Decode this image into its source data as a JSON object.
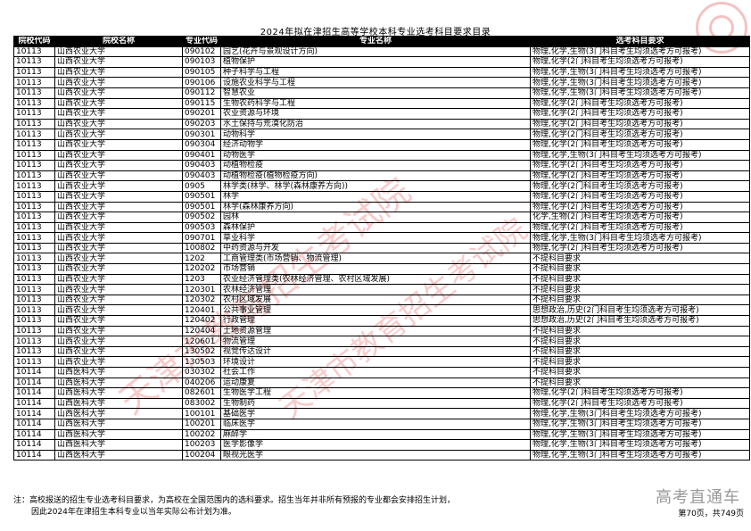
{
  "title": "2024年拟在津招生高等学校本科专业选考科目要求目录",
  "headers": [
    "院校代码",
    "院校名称",
    "专业代码",
    "专业名称",
    "选考科目要求"
  ],
  "rows": [
    [
      "10113",
      "山西农业大学",
      "090102",
      "园艺(花卉与景观设计方向)",
      "物理,化学,生物(3门科目考生均须选考方可报考)"
    ],
    [
      "10113",
      "山西农业大学",
      "090103",
      "植物保护",
      "物理,化学(2门科目考生均须选考方可报考)"
    ],
    [
      "10113",
      "山西农业大学",
      "090105",
      "种子科学与工程",
      "物理,化学,生物(3门科目考生均须选考方可报考)"
    ],
    [
      "10113",
      "山西农业大学",
      "090106",
      "设施农业科学与工程",
      "物理,化学,生物(3门科目考生均须选考方可报考)"
    ],
    [
      "10113",
      "山西农业大学",
      "090112",
      "智慧农业",
      "物理,化学,生物(3门科目考生均须选考方可报考)"
    ],
    [
      "10113",
      "山西农业大学",
      "090115",
      "生物农药科学与工程",
      "物理,化学(2门科目考生均须选考方可报考)"
    ],
    [
      "10113",
      "山西农业大学",
      "090201",
      "农业资源与环境",
      "物理,化学(2门科目考生均须选考方可报考)"
    ],
    [
      "10113",
      "山西农业大学",
      "090203",
      "水土保持与荒漠化防治",
      "物理,化学(2门科目考生均须选考方可报考)"
    ],
    [
      "10113",
      "山西农业大学",
      "090301",
      "动物科学",
      "物理,化学(2门科目考生均须选考方可报考)"
    ],
    [
      "10113",
      "山西农业大学",
      "090304",
      "经济动物学",
      "物理,化学(2门科目考生均须选考方可报考)"
    ],
    [
      "10113",
      "山西农业大学",
      "090401",
      "动物医学",
      "物理,化学,生物(3门科目考生均须选考方可报考)"
    ],
    [
      "10113",
      "山西农业大学",
      "090403",
      "动植物检疫",
      "物理,化学(2门科目考生均须选考方可报考)"
    ],
    [
      "10113",
      "山西农业大学",
      "090403",
      "动植物检疫(植物检疫方向)",
      "物理,化学(2门科目考生均须选考方可报考)"
    ],
    [
      "10113",
      "山西农业大学",
      "0905",
      "林学类(林学、林学(森林康养方向))",
      "物理,化学(2门科目考生均须选考方可报考)"
    ],
    [
      "10113",
      "山西农业大学",
      "090501",
      "林学",
      "物理,化学(2门科目考生均须选考方可报考)"
    ],
    [
      "10113",
      "山西农业大学",
      "090501",
      "林学(森林康养方向)",
      "物理,化学(2门科目考生均须选考方可报考)"
    ],
    [
      "10113",
      "山西农业大学",
      "090502",
      "园林",
      "化学,生物(2门科目考生均须选考方可报考)"
    ],
    [
      "10113",
      "山西农业大学",
      "090503",
      "森林保护",
      "物理,化学(2门科目考生均须选考方可报考)"
    ],
    [
      "10113",
      "山西农业大学",
      "090701",
      "草业科学",
      "物理,化学,生物(3门科目考生均须选考方可报考)"
    ],
    [
      "10113",
      "山西农业大学",
      "100802",
      "中药资源与开发",
      "物理,化学(2门科目考生均须选考方可报考)"
    ],
    [
      "10113",
      "山西农业大学",
      "1202",
      "工商管理类(市场营销、物流管理)",
      "不提科目要求"
    ],
    [
      "10113",
      "山西农业大学",
      "120202",
      "市场营销",
      "不提科目要求"
    ],
    [
      "10113",
      "山西农业大学",
      "1203",
      "农业经济管理类(农林经济管理、农村区域发展)",
      "不提科目要求"
    ],
    [
      "10113",
      "山西农业大学",
      "120301",
      "农林经济管理",
      "不提科目要求"
    ],
    [
      "10113",
      "山西农业大学",
      "120302",
      "农村区域发展",
      "不提科目要求"
    ],
    [
      "10113",
      "山西农业大学",
      "120401",
      "公共事业管理",
      "思想政治,历史(2门科目考生均须选考方可报考)"
    ],
    [
      "10113",
      "山西农业大学",
      "120402",
      "行政管理",
      "思想政治,历史(2门科目考生均须选考方可报考)"
    ],
    [
      "10113",
      "山西农业大学",
      "120404",
      "土地资源管理",
      "不提科目要求"
    ],
    [
      "10113",
      "山西农业大学",
      "120601",
      "物流管理",
      "不提科目要求"
    ],
    [
      "10113",
      "山西农业大学",
      "130502",
      "视觉传达设计",
      "不提科目要求"
    ],
    [
      "10113",
      "山西农业大学",
      "130503",
      "环境设计",
      "不提科目要求"
    ],
    [
      "10114",
      "山西医科大学",
      "030302",
      "社会工作",
      "不提科目要求"
    ],
    [
      "10114",
      "山西医科大学",
      "040206",
      "运动康复",
      "不提科目要求"
    ],
    [
      "10114",
      "山西医科大学",
      "082601",
      "生物医学工程",
      "物理,化学(2门科目考生均须选考方可报考)"
    ],
    [
      "10114",
      "山西医科大学",
      "083002",
      "生物制药",
      "物理,化学(2门科目考生均须选考方可报考)"
    ],
    [
      "10114",
      "山西医科大学",
      "100101",
      "基础医学",
      "物理,化学,生物(3门科目考生均须选考方可报考)"
    ],
    [
      "10114",
      "山西医科大学",
      "100201",
      "临床医学",
      "物理,化学,生物(3门科目考生均须选考方可报考)"
    ],
    [
      "10114",
      "山西医科大学",
      "100202",
      "麻醉学",
      "物理,化学,生物(3门科目考生均须选考方可报考)"
    ],
    [
      "10114",
      "山西医科大学",
      "100203",
      "医学影像学",
      "物理,化学,生物(3门科目考生均须选考方可报考)"
    ],
    [
      "10114",
      "山西医科大学",
      "100204",
      "眼视光医学",
      "物理,化学,生物(3门科目考生均须选考方可报考)"
    ]
  ],
  "notes": {
    "line1": "注：高校报送的招生专业选考科目要求，为高校在全国范围内的选科要求。招生当年并非所有预报的专业都会安排招生计划，",
    "line2": "因此2024年在津招生本科专业以当年实际公布计划为准。"
  },
  "page_number": "第70页，共749页",
  "watermark": "天津市教育招生考试院",
  "brand_watermark": "高考直通车",
  "colors": {
    "watermark": "#e64646",
    "header_bg": "#000000"
  }
}
